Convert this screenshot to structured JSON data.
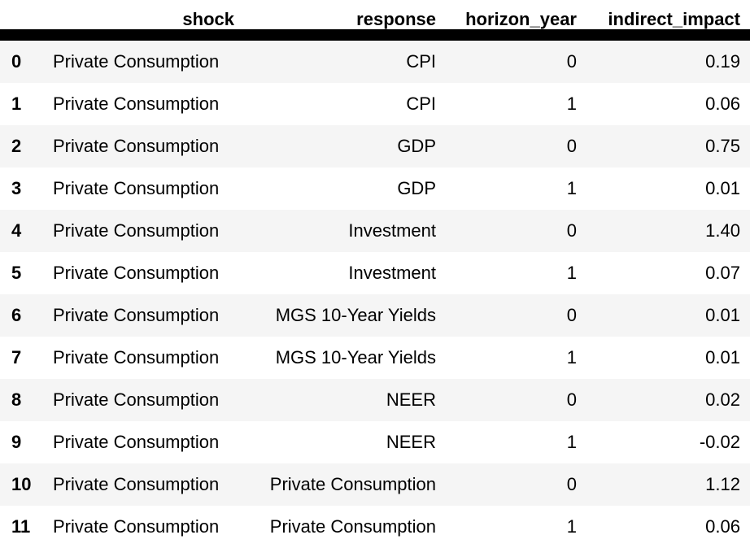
{
  "columns": {
    "shock": "shock",
    "response": "response",
    "horizon_year": "horizon_year",
    "indirect_impact": "indirect_impact"
  },
  "rows": [
    {
      "index": "0",
      "shock": "Private Consumption",
      "response": "CPI",
      "horizon_year": "0",
      "indirect_impact": "0.19"
    },
    {
      "index": "1",
      "shock": "Private Consumption",
      "response": "CPI",
      "horizon_year": "1",
      "indirect_impact": "0.06"
    },
    {
      "index": "2",
      "shock": "Private Consumption",
      "response": "GDP",
      "horizon_year": "0",
      "indirect_impact": "0.75"
    },
    {
      "index": "3",
      "shock": "Private Consumption",
      "response": "GDP",
      "horizon_year": "1",
      "indirect_impact": "0.01"
    },
    {
      "index": "4",
      "shock": "Private Consumption",
      "response": "Investment",
      "horizon_year": "0",
      "indirect_impact": "1.40"
    },
    {
      "index": "5",
      "shock": "Private Consumption",
      "response": "Investment",
      "horizon_year": "1",
      "indirect_impact": "0.07"
    },
    {
      "index": "6",
      "shock": "Private Consumption",
      "response": "MGS 10-Year Yields",
      "horizon_year": "0",
      "indirect_impact": "0.01"
    },
    {
      "index": "7",
      "shock": "Private Consumption",
      "response": "MGS 10-Year Yields",
      "horizon_year": "1",
      "indirect_impact": "0.01"
    },
    {
      "index": "8",
      "shock": "Private Consumption",
      "response": "NEER",
      "horizon_year": "0",
      "indirect_impact": "0.02"
    },
    {
      "index": "9",
      "shock": "Private Consumption",
      "response": "NEER",
      "horizon_year": "1",
      "indirect_impact": "-0.02"
    },
    {
      "index": "10",
      "shock": "Private Consumption",
      "response": "Private Consumption",
      "horizon_year": "0",
      "indirect_impact": "1.12"
    },
    {
      "index": "11",
      "shock": "Private Consumption",
      "response": "Private Consumption",
      "horizon_year": "1",
      "indirect_impact": "0.06"
    }
  ]
}
